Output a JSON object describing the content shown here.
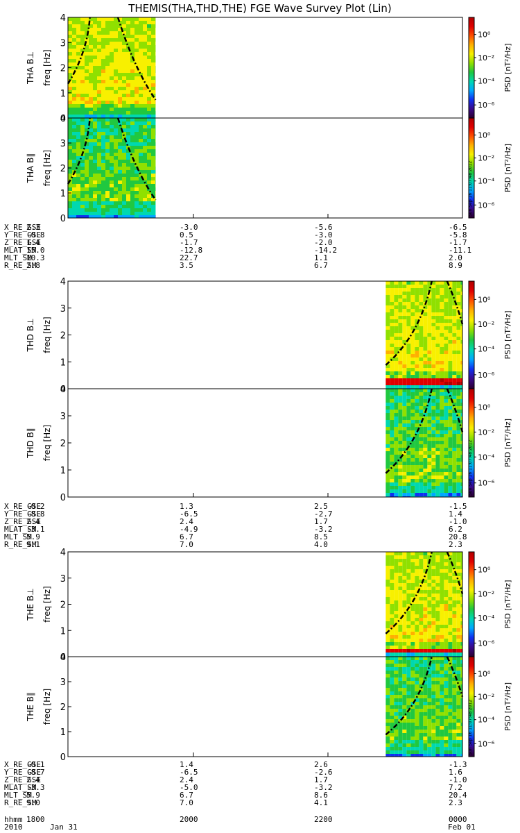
{
  "title": "THEMIS(THA,THD,THE) FGE Wave Survey Plot (Lin)",
  "colors": {
    "background": "#ffffff",
    "colormap": [
      "#2a0030",
      "#3a0a8a",
      "#1030f0",
      "#00a8ff",
      "#00d8b0",
      "#20c840",
      "#90e000",
      "#f8f000",
      "#ffb000",
      "#ff5000",
      "#e00000",
      "#b00000"
    ]
  },
  "colorbar": {
    "label": "PSD [nT²/Hz]",
    "ticks": [
      "10⁰",
      "10⁻²",
      "10⁻⁴",
      "10⁻⁶"
    ],
    "scale": "log"
  },
  "freq_label": "freq [Hz]",
  "freq_ticks": [
    "0",
    "1",
    "2",
    "3",
    "4"
  ],
  "stamp": "Sun Sep 16 11:07:48 2012",
  "chart_data": {
    "type": "heatmap",
    "x_axis": {
      "label": "hhmm",
      "ticks": [
        "1800",
        "2000",
        "2200",
        "0000"
      ],
      "date_labels": [
        "2010",
        "Jan 31",
        "Feb 01"
      ]
    },
    "ylim": [
      0,
      4
    ],
    "probes": [
      {
        "name": "THA",
        "panels": [
          "THA B⊥",
          "THA B∥"
        ],
        "data_start": "1800",
        "data_end": "1920",
        "ephemeris": [
          {
            "label": "X_RE_GSE",
            "values": [
              "2.3",
              "-3.0",
              "-5.6",
              "-6.5"
            ]
          },
          {
            "label": "Y_RE_GSE",
            "values": [
              "-0.8",
              "0.5",
              "-3.0",
              "-5.8"
            ]
          },
          {
            "label": "Z_RE_GSE",
            "values": [
              "1.4",
              "-1.7",
              "-2.0",
              "-1.7"
            ]
          },
          {
            "label": "MLAT_SM",
            "values": [
              "15.0",
              "-12.8",
              "-14.2",
              "-11.1"
            ]
          },
          {
            "label": "MLT_SM",
            "values": [
              "10.3",
              "22.7",
              "1.1",
              "2.0"
            ]
          },
          {
            "label": "R_RE_SM",
            "values": [
              "2.8",
              "3.5",
              "6.7",
              "8.9"
            ]
          }
        ]
      },
      {
        "name": "THD",
        "panels": [
          "THD B⊥",
          "THD B∥"
        ],
        "data_start": "2250",
        "data_end": "0000",
        "ephemeris": [
          {
            "label": "X_RE_GSE",
            "values": [
              "-0.2",
              "1.3",
              "2.5",
              "-1.5"
            ]
          },
          {
            "label": "Y_RE_GSE",
            "values": [
              "-8.8",
              "-6.5",
              "-2.7",
              "1.4"
            ]
          },
          {
            "label": "Z_RE_GSE",
            "values": [
              "2.4",
              "2.4",
              "1.7",
              "-1.0"
            ]
          },
          {
            "label": "MLAT_SM",
            "values": [
              "-3.1",
              "-4.9",
              "-3.2",
              "6.2"
            ]
          },
          {
            "label": "MLT_SM",
            "values": [
              "5.9",
              "6.7",
              "8.5",
              "20.8"
            ]
          },
          {
            "label": "R_RE_SM",
            "values": [
              "9.1",
              "7.0",
              "4.0",
              "2.3"
            ]
          }
        ]
      },
      {
        "name": "THE",
        "panels": [
          "THE B⊥",
          "THE B∥"
        ],
        "data_start": "2250",
        "data_end": "0000",
        "ephemeris": [
          {
            "label": "X_RE_GSE",
            "values": [
              "-0.1",
              "1.4",
              "2.6",
              "-1.3"
            ]
          },
          {
            "label": "Y_RE_GSE",
            "values": [
              "-8.7",
              "-6.5",
              "-2.6",
              "1.6"
            ]
          },
          {
            "label": "Z_RE_GSE",
            "values": [
              "2.4",
              "2.4",
              "1.7",
              "-1.0"
            ]
          },
          {
            "label": "MLAT_SM",
            "values": [
              "-3.3",
              "-5.0",
              "-3.2",
              "7.2"
            ]
          },
          {
            "label": "MLT_SM",
            "values": [
              "5.9",
              "6.7",
              "8.6",
              "20.4"
            ]
          },
          {
            "label": "R_RE_SM",
            "values": [
              "9.0",
              "7.0",
              "4.1",
              "2.3"
            ]
          }
        ]
      }
    ]
  }
}
